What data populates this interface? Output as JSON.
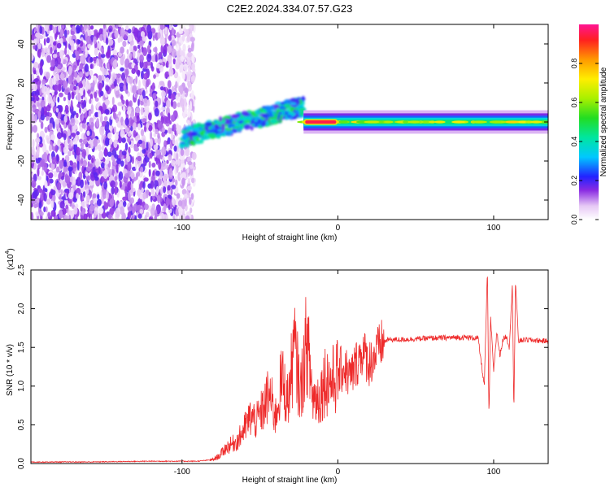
{
  "title": "C2E2.2024.334.07.57.G23",
  "chart_data": [
    {
      "type": "heatmap",
      "name": "spectrogram",
      "xlabel": "Height of straight line (km)",
      "ylabel": "Frequency (Hz)",
      "xlim": [
        -197,
        135
      ],
      "ylim": [
        -50,
        50
      ],
      "x_ticks": [
        -100,
        0,
        100
      ],
      "x_tick_labels": [
        "-100",
        "0",
        "100"
      ],
      "y_ticks": [
        -40,
        -20,
        0,
        20,
        40
      ],
      "y_tick_labels": [
        "-40",
        "-20",
        "0",
        "20",
        "40"
      ],
      "colorbar": {
        "label": "Normalized spectral amplitude",
        "range": [
          0,
          1
        ],
        "ticks": [
          0.0,
          0.2,
          0.4,
          0.6,
          0.8
        ],
        "tick_labels": [
          "0.0",
          "0.2",
          "0.4",
          "0.6",
          "0.8"
        ]
      },
      "features": [
        {
          "region": "noise",
          "x_range": [
            -197,
            -92
          ],
          "freq_range": [
            -50,
            50
          ],
          "amplitude": 0.15
        },
        {
          "region": "transition",
          "x_range": [
            -100,
            -22
          ],
          "freq_start": -8,
          "freq_end": 8,
          "amplitude": 0.4
        },
        {
          "region": "carrier",
          "x_range": [
            -22,
            135
          ],
          "freq": 0,
          "amplitude": 0.45
        },
        {
          "region": "peak",
          "x_range": [
            -22,
            0
          ],
          "freq": 0,
          "amplitude": 0.95
        }
      ]
    },
    {
      "type": "line",
      "name": "snr",
      "xlabel": "Height of straight line (km)",
      "ylabel": "SNR (10 * v/v)",
      "y_multiplier_label": "(x10",
      "y_multiplier_exp": "4",
      "xlim": [
        -197,
        135
      ],
      "ylim": [
        0,
        2.5
      ],
      "x_ticks": [
        -100,
        0,
        100
      ],
      "x_tick_labels": [
        "-100",
        "0",
        "100"
      ],
      "y_ticks": [
        0.0,
        0.5,
        1.0,
        1.5,
        2.0,
        2.5
      ],
      "y_tick_labels": [
        "0.0",
        "0.5",
        "1.0",
        "1.5",
        "2.0",
        "2.5"
      ],
      "series": [
        {
          "name": "SNR",
          "color": "#ee2a2a",
          "x": [
            -197,
            -160,
            -120,
            -90,
            -80,
            -76,
            -72,
            -68,
            -64,
            -60,
            -56,
            -52,
            -48,
            -44,
            -40,
            -36,
            -32,
            -28,
            -24,
            -20,
            -16,
            -12,
            -8,
            -4,
            0,
            4,
            8,
            12,
            16,
            20,
            24,
            28,
            32,
            40,
            60,
            80,
            90,
            94,
            96,
            97,
            98,
            100,
            102,
            104,
            106,
            108,
            110,
            112,
            113,
            114,
            116,
            120,
            135
          ],
          "y": [
            0.02,
            0.02,
            0.03,
            0.03,
            0.05,
            0.1,
            0.2,
            0.25,
            0.3,
            0.45,
            0.6,
            0.55,
            0.7,
            0.9,
            0.6,
            1.1,
            0.8,
            1.5,
            0.9,
            1.6,
            0.85,
            0.85,
            1.1,
            1.05,
            1.15,
            1.25,
            1.1,
            1.3,
            1.45,
            1.3,
            1.4,
            1.55,
            1.6,
            1.6,
            1.62,
            1.63,
            1.62,
            1.0,
            2.5,
            0.55,
            1.9,
            1.2,
            1.7,
            1.4,
            1.6,
            1.65,
            1.5,
            2.3,
            0.65,
            2.35,
            1.58,
            1.6,
            1.58
          ]
        }
      ]
    }
  ]
}
